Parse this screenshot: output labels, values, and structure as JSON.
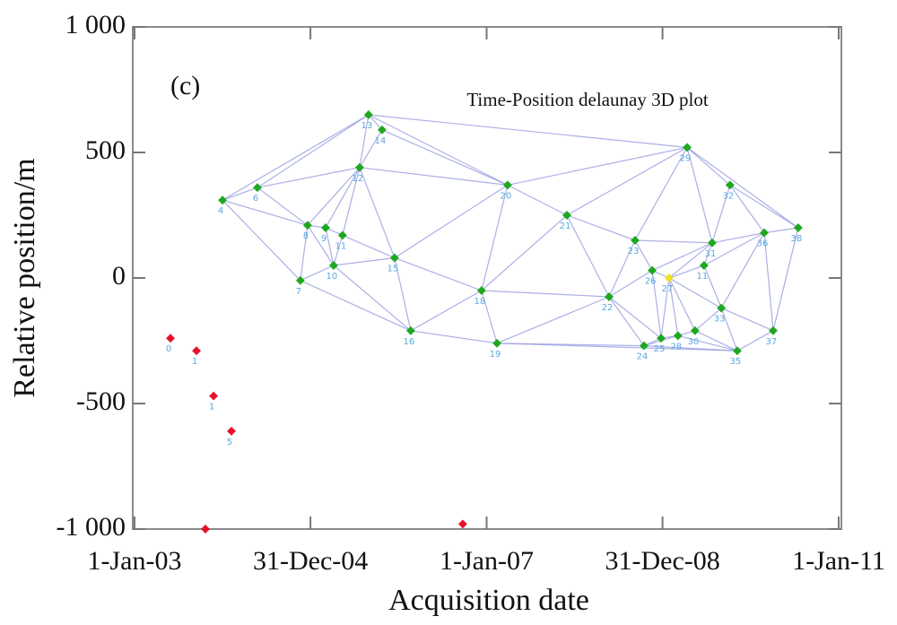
{
  "chart_data": {
    "type": "scatter",
    "title": "Time-Position delaunay 3D plot",
    "annotation": "(c)",
    "xlabel": "Acquisition date",
    "ylabel": "Relative position/m",
    "xlim": [
      "2003-01-01",
      "2011-01-01"
    ],
    "xticks": [
      {
        "value": "2003-01-01",
        "label": "1-Jan-03"
      },
      {
        "value": "2004-12-31",
        "label": "31-Dec-04"
      },
      {
        "value": "2007-01-01",
        "label": "1-Jan-07"
      },
      {
        "value": "2008-12-31",
        "label": "31-Dec-08"
      },
      {
        "value": "2011-01-01",
        "label": "1-Jan-11"
      }
    ],
    "ylim": [
      -1000,
      1000
    ],
    "yticks": [
      {
        "value": -1000,
        "label": "-1 000"
      },
      -500,
      0,
      500,
      {
        "value": 1000,
        "label": "1 000"
      }
    ],
    "triangulated": true,
    "series": [
      {
        "color": "#1fa81f",
        "triangulated": true,
        "x": [
          "2004-01-01",
          "2004-05-25",
          "2004-12-19",
          "2005-03-04",
          "2005-05-13",
          "2004-11-19",
          "2005-04-06",
          "2005-07-23",
          "2005-08-29",
          "2005-10-24",
          "2005-12-15",
          "2006-02-20",
          "2006-12-11",
          "2007-02-13",
          "2007-03-29",
          "2007-11-30",
          "2008-05-23",
          "2008-09-08",
          "2008-11-18",
          "2008-10-15",
          "2008-12-25",
          "2009-03-05",
          "2009-05-15",
          "2009-04-12",
          "2009-10-07",
          "2009-07-25",
          "2009-06-21",
          "2009-09-01",
          "2009-11-06",
          "2010-02-26",
          "2010-04-04",
          "2010-07-17"
        ],
        "values": [
          310,
          360,
          210,
          200,
          170,
          -10,
          50,
          440,
          650,
          590,
          80,
          -210,
          -50,
          -260,
          370,
          250,
          -75,
          150,
          30,
          -270,
          -240,
          -230,
          -210,
          520,
          370,
          140,
          50,
          -120,
          -290,
          180,
          -210,
          200
        ],
        "labels": [
          "4",
          "6",
          "8",
          "9",
          "11",
          "7",
          "10",
          "12",
          "13",
          "14",
          "15",
          "16",
          "18",
          "19",
          "20",
          "21",
          "22",
          "23",
          "26",
          "24",
          "25",
          "28",
          "30",
          "29",
          "32",
          "31",
          "11",
          "33",
          "35",
          "36",
          "37",
          "38"
        ]
      },
      {
        "color": "#f0e020",
        "triangulated": true,
        "x": [
          "2009-01-27"
        ],
        "values": [
          0
        ],
        "labels": [
          "27"
        ]
      },
      {
        "color": "#e8102a",
        "triangulated": false,
        "x": [
          "2003-05-30",
          "2003-09-15",
          "2003-11-25",
          "2004-02-07",
          "2003-10-22",
          "2006-09-24"
        ],
        "values": [
          -240,
          -290,
          -470,
          -610,
          -1000,
          -980
        ],
        "labels": [
          "0",
          "1",
          "1",
          "5",
          null,
          null
        ]
      }
    ]
  }
}
